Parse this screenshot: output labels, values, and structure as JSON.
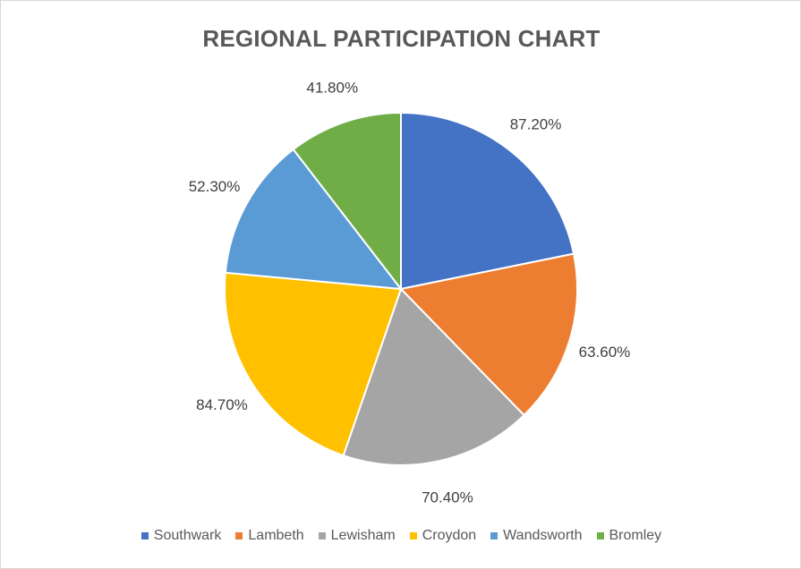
{
  "chart_data": {
    "type": "pie",
    "title": "REGIONAL PARTICIPATION CHART",
    "categories": [
      "Southwark",
      "Lambeth",
      "Lewisham",
      "Croydon",
      "Wandsworth",
      "Bromley"
    ],
    "values": [
      87.2,
      63.6,
      70.4,
      84.7,
      52.3,
      41.8
    ],
    "labels": [
      "87.20%",
      "63.60%",
      "70.40%",
      "84.70%",
      "52.30%",
      "41.80%"
    ],
    "colors": [
      "#4472c4",
      "#ed7d31",
      "#a5a5a5",
      "#ffc000",
      "#5b9bd5",
      "#70ad47"
    ],
    "legend_position": "bottom"
  }
}
